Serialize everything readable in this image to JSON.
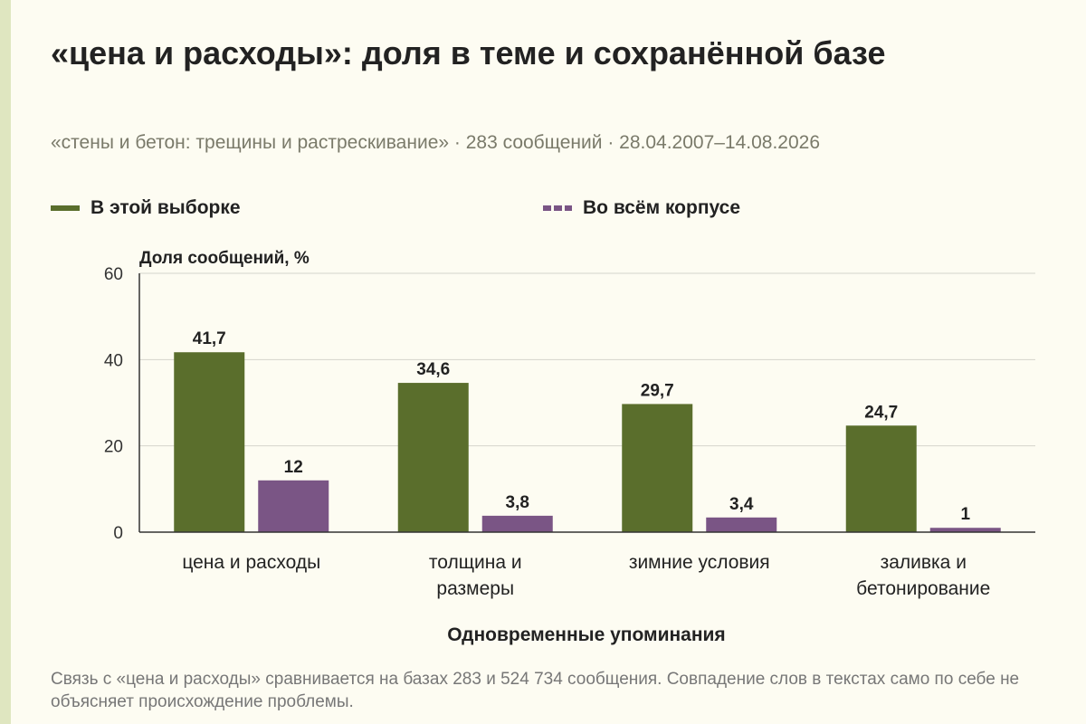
{
  "title": "«цена и расходы»: доля в теме и сохранённой базе",
  "subtitle": "«стены и бетон: трещины и растрескивание» · 283 сообщений · 28.04.2007–14.08.2026",
  "footnote": "Связь с «цена и расходы» сравнивается на базах 283 и 524 734 сообщения. Совпадение слов в текстах само по себе не объясняет происхождение проблемы.",
  "chart_data": {
    "type": "bar",
    "title": "«цена и расходы»: доля в теме и сохранённой базе",
    "ylabel": "Доля сообщений, %",
    "xlabel": "Одновременные упоминания",
    "ylim": [
      0,
      60
    ],
    "yticks": [
      0,
      20,
      40,
      60
    ],
    "grid": true,
    "legend_position": "top",
    "categories": [
      [
        "цена и расходы"
      ],
      [
        "толщина и",
        "размеры"
      ],
      [
        "зимние условия"
      ],
      [
        "заливка и",
        "бетонирование"
      ]
    ],
    "series": [
      {
        "name": "В этой выборке",
        "color": "#5a6e2c",
        "values": [
          41.7,
          34.6,
          29.7,
          24.7
        ],
        "labels": [
          "41,7",
          "34,6",
          "29,7",
          "24,7"
        ]
      },
      {
        "name": "Во всём корпусе",
        "color": "#7a5585",
        "values": [
          12,
          3.8,
          3.4,
          1
        ],
        "labels": [
          "12",
          "3,8",
          "3,4",
          "1"
        ]
      }
    ]
  }
}
